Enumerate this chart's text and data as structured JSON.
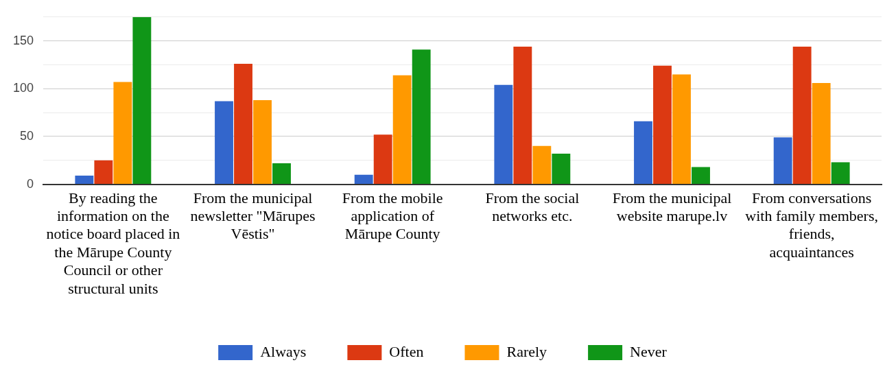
{
  "chart_data": {
    "type": "bar",
    "categories": [
      "By reading the information on the notice board placed in the Mārupe County Council or other structural units",
      "From the municipal newsletter \"Mārupes Vēstis\"",
      "From the mobile application of Mārupe County",
      "From the social networks etc.",
      "From the municipal website marupe.lv",
      "From conversations with family members, friends, acquaintances"
    ],
    "series": [
      {
        "name": "Always",
        "color": "#3366cc",
        "values": [
          9,
          87,
          10,
          104,
          66,
          49
        ]
      },
      {
        "name": "Often",
        "color": "#dc3912",
        "values": [
          25,
          126,
          52,
          144,
          124,
          144
        ]
      },
      {
        "name": "Rarely",
        "color": "#ff9900",
        "values": [
          107,
          88,
          114,
          40,
          115,
          106
        ]
      },
      {
        "name": "Never",
        "color": "#109618",
        "values": [
          175,
          22,
          141,
          32,
          18,
          23
        ]
      }
    ],
    "ylim": [
      0,
      175
    ],
    "yticks": [
      0,
      {
        "value": 25,
        "label": null
      },
      50,
      {
        "value": 75,
        "label": null
      },
      100,
      {
        "value": 125,
        "label": null
      },
      150,
      {
        "value": 175,
        "label": null
      }
    ],
    "grid": "y",
    "legend": "bottom"
  }
}
